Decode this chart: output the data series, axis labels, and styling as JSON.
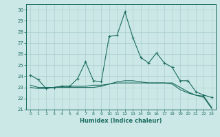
{
  "xlabel": "Humidex (Indice chaleur)",
  "ylabel": "",
  "background_color": "#cce8e6",
  "grid_color": "#aacfcd",
  "line_color": "#1a6b5e",
  "xlim": [
    -0.5,
    23.5
  ],
  "ylim": [
    21,
    30.5
  ],
  "yticks": [
    21,
    22,
    23,
    24,
    25,
    26,
    27,
    28,
    29,
    30
  ],
  "xticks": [
    0,
    1,
    2,
    3,
    4,
    5,
    6,
    7,
    8,
    9,
    10,
    11,
    12,
    13,
    14,
    15,
    16,
    17,
    18,
    19,
    20,
    21,
    22,
    23
  ],
  "series1_x": [
    0,
    1,
    2,
    3,
    4,
    5,
    6,
    7,
    8,
    9,
    10,
    11,
    12,
    13,
    14,
    15,
    16,
    17,
    18,
    19,
    20,
    21,
    22,
    23
  ],
  "series1_y": [
    24.1,
    23.7,
    22.9,
    23.0,
    23.1,
    23.1,
    23.8,
    25.3,
    23.6,
    23.5,
    27.6,
    27.7,
    29.8,
    27.5,
    25.7,
    25.2,
    26.1,
    25.2,
    24.8,
    23.6,
    23.6,
    22.6,
    22.3,
    22.1
  ],
  "series2_x": [
    0,
    1,
    2,
    3,
    4,
    5,
    6,
    7,
    8,
    9,
    10,
    11,
    12,
    13,
    14,
    15,
    16,
    17,
    18,
    19,
    20,
    21,
    22,
    23
  ],
  "series2_y": [
    23.0,
    22.9,
    22.9,
    23.0,
    23.1,
    23.1,
    23.1,
    23.1,
    23.2,
    23.2,
    23.3,
    23.4,
    23.4,
    23.4,
    23.4,
    23.4,
    23.4,
    23.4,
    23.3,
    22.8,
    22.5,
    22.3,
    22.1,
    21.1
  ],
  "series3_x": [
    0,
    1,
    2,
    3,
    4,
    5,
    6,
    7,
    8,
    9,
    10,
    11,
    12,
    13,
    14,
    15,
    16,
    17,
    18,
    19,
    20,
    21,
    22,
    23
  ],
  "series3_y": [
    23.2,
    23.0,
    23.0,
    23.0,
    23.0,
    23.0,
    23.0,
    23.0,
    23.0,
    23.1,
    23.3,
    23.5,
    23.6,
    23.6,
    23.5,
    23.4,
    23.4,
    23.4,
    23.4,
    23.0,
    22.6,
    22.3,
    22.2,
    21.2
  ]
}
